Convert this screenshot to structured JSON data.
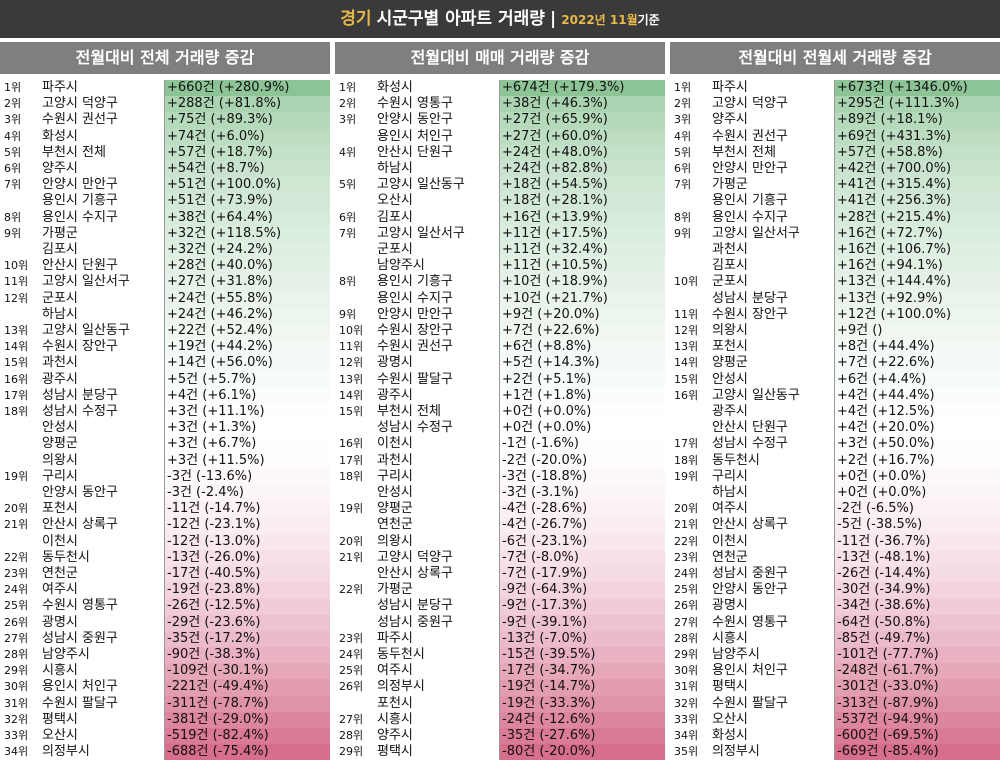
{
  "header": {
    "region": "경기",
    "title": "시군구별 아파트 거래량",
    "separator": "|",
    "date": "2022년 11월",
    "date_suffix": "기준"
  },
  "panels": [
    {
      "title": "전월대비 전체 거래량 증감",
      "rows": [
        {
          "rank": "1위",
          "name": "파주시",
          "value": "+660건 (+280.9%)"
        },
        {
          "rank": "2위",
          "name": "고양시 덕양구",
          "value": "+288건 (+81.8%)"
        },
        {
          "rank": "3위",
          "name": "수원시 권선구",
          "value": "+75건 (+89.3%)"
        },
        {
          "rank": "4위",
          "name": "화성시",
          "value": "+74건 (+6.0%)"
        },
        {
          "rank": "5위",
          "name": "부천시 전체",
          "value": "+57건 (+18.7%)"
        },
        {
          "rank": "6위",
          "name": "양주시",
          "value": "+54건 (+8.7%)"
        },
        {
          "rank": "7위",
          "name": "안양시 만안구",
          "value": "+51건 (+100.0%)"
        },
        {
          "rank": "",
          "name": "용인시 기흥구",
          "value": "+51건 (+73.9%)"
        },
        {
          "rank": "8위",
          "name": "용인시 수지구",
          "value": "+38건 (+64.4%)"
        },
        {
          "rank": "9위",
          "name": "가평군",
          "value": "+32건 (+118.5%)"
        },
        {
          "rank": "",
          "name": "김포시",
          "value": "+32건 (+24.2%)"
        },
        {
          "rank": "10위",
          "name": "안산시 단원구",
          "value": "+28건 (+40.0%)"
        },
        {
          "rank": "11위",
          "name": "고양시 일산서구",
          "value": "+27건 (+31.8%)"
        },
        {
          "rank": "12위",
          "name": "군포시",
          "value": "+24건 (+55.8%)"
        },
        {
          "rank": "",
          "name": "하남시",
          "value": "+24건 (+46.2%)"
        },
        {
          "rank": "13위",
          "name": "고양시 일산동구",
          "value": "+22건 (+52.4%)"
        },
        {
          "rank": "14위",
          "name": "수원시 장안구",
          "value": "+19건 (+44.2%)"
        },
        {
          "rank": "15위",
          "name": "과천시",
          "value": "+14건 (+56.0%)"
        },
        {
          "rank": "16위",
          "name": "광주시",
          "value": "+5건 (+5.7%)"
        },
        {
          "rank": "17위",
          "name": "성남시 분당구",
          "value": "+4건 (+6.1%)"
        },
        {
          "rank": "18위",
          "name": "성남시 수정구",
          "value": "+3건 (+11.1%)"
        },
        {
          "rank": "",
          "name": "안성시",
          "value": "+3건 (+1.3%)"
        },
        {
          "rank": "",
          "name": "양평군",
          "value": "+3건 (+6.7%)"
        },
        {
          "rank": "",
          "name": "의왕시",
          "value": "+3건 (+11.5%)"
        },
        {
          "rank": "19위",
          "name": "구리시",
          "value": "-3건 (-13.6%)"
        },
        {
          "rank": "",
          "name": "안양시 동안구",
          "value": "-3건 (-2.4%)"
        },
        {
          "rank": "20위",
          "name": "포천시",
          "value": "-11건 (-14.7%)"
        },
        {
          "rank": "21위",
          "name": "안산시 상록구",
          "value": "-12건 (-23.1%)"
        },
        {
          "rank": "",
          "name": "이천시",
          "value": "-12건 (-13.0%)"
        },
        {
          "rank": "22위",
          "name": "동두천시",
          "value": "-13건 (-26.0%)"
        },
        {
          "rank": "23위",
          "name": "연천군",
          "value": "-17건 (-40.5%)"
        },
        {
          "rank": "24위",
          "name": "여주시",
          "value": "-19건 (-23.8%)"
        },
        {
          "rank": "25위",
          "name": "수원시 영통구",
          "value": "-26건 (-12.5%)"
        },
        {
          "rank": "26위",
          "name": "광명시",
          "value": "-29건 (-23.6%)"
        },
        {
          "rank": "27위",
          "name": "성남시 중원구",
          "value": "-35건 (-17.2%)"
        },
        {
          "rank": "28위",
          "name": "남양주시",
          "value": "-90건 (-38.3%)"
        },
        {
          "rank": "29위",
          "name": "시흥시",
          "value": "-109건 (-30.1%)"
        },
        {
          "rank": "30위",
          "name": "용인시 처인구",
          "value": "-221건 (-49.4%)"
        },
        {
          "rank": "31위",
          "name": "수원시 팔달구",
          "value": "-311건 (-78.7%)"
        },
        {
          "rank": "32위",
          "name": "평택시",
          "value": "-381건 (-29.0%)"
        },
        {
          "rank": "33위",
          "name": "오산시",
          "value": "-519건 (-82.4%)"
        },
        {
          "rank": "34위",
          "name": "의정부시",
          "value": "-688건 (-75.4%)"
        }
      ]
    },
    {
      "title": "전월대비 매매 거래량 증감",
      "rows": [
        {
          "rank": "1위",
          "name": "화성시",
          "value": "+674건 (+179.3%)"
        },
        {
          "rank": "2위",
          "name": "수원시 영통구",
          "value": "+38건 (+46.3%)"
        },
        {
          "rank": "3위",
          "name": "안양시 동안구",
          "value": "+27건 (+65.9%)"
        },
        {
          "rank": "",
          "name": "용인시 처인구",
          "value": "+27건 (+60.0%)"
        },
        {
          "rank": "4위",
          "name": "안산시 단원구",
          "value": "+24건 (+48.0%)"
        },
        {
          "rank": "",
          "name": "하남시",
          "value": "+24건 (+82.8%)"
        },
        {
          "rank": "5위",
          "name": "고양시 일산동구",
          "value": "+18건 (+54.5%)"
        },
        {
          "rank": "",
          "name": "오산시",
          "value": "+18건 (+28.1%)"
        },
        {
          "rank": "6위",
          "name": "김포시",
          "value": "+16건 (+13.9%)"
        },
        {
          "rank": "7위",
          "name": "고양시 일산서구",
          "value": "+11건 (+17.5%)"
        },
        {
          "rank": "",
          "name": "군포시",
          "value": "+11건 (+32.4%)"
        },
        {
          "rank": "",
          "name": "남양주시",
          "value": "+11건 (+10.5%)"
        },
        {
          "rank": "8위",
          "name": "용인시 기흥구",
          "value": "+10건 (+18.9%)"
        },
        {
          "rank": "",
          "name": "용인시 수지구",
          "value": "+10건 (+21.7%)"
        },
        {
          "rank": "9위",
          "name": "안양시 만안구",
          "value": "+9건 (+20.0%)"
        },
        {
          "rank": "10위",
          "name": "수원시 장안구",
          "value": "+7건 (+22.6%)"
        },
        {
          "rank": "11위",
          "name": "수원시 권선구",
          "value": "+6건 (+8.8%)"
        },
        {
          "rank": "12위",
          "name": "광명시",
          "value": "+5건 (+14.3%)"
        },
        {
          "rank": "13위",
          "name": "수원시 팔달구",
          "value": "+2건 (+5.1%)"
        },
        {
          "rank": "14위",
          "name": "광주시",
          "value": "+1건 (+1.8%)"
        },
        {
          "rank": "15위",
          "name": "부천시 전체",
          "value": "+0건 (+0.0%)"
        },
        {
          "rank": "",
          "name": "성남시 수정구",
          "value": "+0건 (+0.0%)"
        },
        {
          "rank": "16위",
          "name": "이천시",
          "value": "-1건 (-1.6%)"
        },
        {
          "rank": "17위",
          "name": "과천시",
          "value": "-2건 (-20.0%)"
        },
        {
          "rank": "18위",
          "name": "구리시",
          "value": "-3건 (-18.8%)"
        },
        {
          "rank": "",
          "name": "안성시",
          "value": "-3건 (-3.1%)"
        },
        {
          "rank": "19위",
          "name": "양평군",
          "value": "-4건 (-28.6%)"
        },
        {
          "rank": "",
          "name": "연천군",
          "value": "-4건 (-26.7%)"
        },
        {
          "rank": "20위",
          "name": "의왕시",
          "value": "-6건 (-23.1%)"
        },
        {
          "rank": "21위",
          "name": "고양시 덕양구",
          "value": "-7건 (-8.0%)"
        },
        {
          "rank": "",
          "name": "안산시 상록구",
          "value": "-7건 (-17.9%)"
        },
        {
          "rank": "22위",
          "name": "가평군",
          "value": "-9건 (-64.3%)"
        },
        {
          "rank": "",
          "name": "성남시 분당구",
          "value": "-9건 (-17.3%)"
        },
        {
          "rank": "",
          "name": "성남시 중원구",
          "value": "-9건 (-39.1%)"
        },
        {
          "rank": "23위",
          "name": "파주시",
          "value": "-13건 (-7.0%)"
        },
        {
          "rank": "24위",
          "name": "동두천시",
          "value": "-15건 (-39.5%)"
        },
        {
          "rank": "25위",
          "name": "여주시",
          "value": "-17건 (-34.7%)"
        },
        {
          "rank": "26위",
          "name": "의정부시",
          "value": "-19건 (-14.7%)"
        },
        {
          "rank": "",
          "name": "포천시",
          "value": "-19건 (-33.3%)"
        },
        {
          "rank": "27위",
          "name": "시흥시",
          "value": "-24건 (-12.6%)"
        },
        {
          "rank": "28위",
          "name": "양주시",
          "value": "-35건 (-27.6%)"
        },
        {
          "rank": "29위",
          "name": "평택시",
          "value": "-80건 (-20.0%)"
        }
      ]
    },
    {
      "title": "전월대비 전월세 거래량 증감",
      "rows": [
        {
          "rank": "1위",
          "name": "파주시",
          "value": "+673건 (+1346.0%)"
        },
        {
          "rank": "2위",
          "name": "고양시 덕양구",
          "value": "+295건 (+111.3%)"
        },
        {
          "rank": "3위",
          "name": "양주시",
          "value": "+89건 (+18.1%)"
        },
        {
          "rank": "4위",
          "name": "수원시 권선구",
          "value": "+69건 (+431.3%)"
        },
        {
          "rank": "5위",
          "name": "부천시 전체",
          "value": "+57건 (+58.8%)"
        },
        {
          "rank": "6위",
          "name": "안양시 만안구",
          "value": "+42건 (+700.0%)"
        },
        {
          "rank": "7위",
          "name": "가평군",
          "value": "+41건 (+315.4%)"
        },
        {
          "rank": "",
          "name": "용인시 기흥구",
          "value": "+41건 (+256.3%)"
        },
        {
          "rank": "8위",
          "name": "용인시 수지구",
          "value": "+28건 (+215.4%)"
        },
        {
          "rank": "9위",
          "name": "고양시 일산서구",
          "value": "+16건 (+72.7%)"
        },
        {
          "rank": "",
          "name": "과천시",
          "value": "+16건 (+106.7%)"
        },
        {
          "rank": "",
          "name": "김포시",
          "value": "+16건 (+94.1%)"
        },
        {
          "rank": "10위",
          "name": "군포시",
          "value": "+13건 (+144.4%)"
        },
        {
          "rank": "",
          "name": "성남시 분당구",
          "value": "+13건 (+92.9%)"
        },
        {
          "rank": "11위",
          "name": "수원시 장안구",
          "value": "+12건 (+100.0%)"
        },
        {
          "rank": "12위",
          "name": "의왕시",
          "value": "+9건 ()"
        },
        {
          "rank": "13위",
          "name": "포천시",
          "value": "+8건 (+44.4%)"
        },
        {
          "rank": "14위",
          "name": "양평군",
          "value": "+7건 (+22.6%)"
        },
        {
          "rank": "15위",
          "name": "안성시",
          "value": "+6건 (+4.4%)"
        },
        {
          "rank": "16위",
          "name": "고양시 일산동구",
          "value": "+4건 (+44.4%)"
        },
        {
          "rank": "",
          "name": "광주시",
          "value": "+4건 (+12.5%)"
        },
        {
          "rank": "",
          "name": "안산시 단원구",
          "value": "+4건 (+20.0%)"
        },
        {
          "rank": "17위",
          "name": "성남시 수정구",
          "value": "+3건 (+50.0%)"
        },
        {
          "rank": "18위",
          "name": "동두천시",
          "value": "+2건 (+16.7%)"
        },
        {
          "rank": "19위",
          "name": "구리시",
          "value": "+0건 (+0.0%)"
        },
        {
          "rank": "",
          "name": "하남시",
          "value": "+0건 (+0.0%)"
        },
        {
          "rank": "20위",
          "name": "여주시",
          "value": "-2건 (-6.5%)"
        },
        {
          "rank": "21위",
          "name": "안산시 상록구",
          "value": "-5건 (-38.5%)"
        },
        {
          "rank": "22위",
          "name": "이천시",
          "value": "-11건 (-36.7%)"
        },
        {
          "rank": "23위",
          "name": "연천군",
          "value": "-13건 (-48.1%)"
        },
        {
          "rank": "24위",
          "name": "성남시 중원구",
          "value": "-26건 (-14.4%)"
        },
        {
          "rank": "25위",
          "name": "안양시 동안구",
          "value": "-30건 (-34.9%)"
        },
        {
          "rank": "26위",
          "name": "광명시",
          "value": "-34건 (-38.6%)"
        },
        {
          "rank": "27위",
          "name": "수원시 영통구",
          "value": "-64건 (-50.8%)"
        },
        {
          "rank": "28위",
          "name": "시흥시",
          "value": "-85건 (-49.7%)"
        },
        {
          "rank": "29위",
          "name": "남양주시",
          "value": "-101건 (-77.7%)"
        },
        {
          "rank": "30위",
          "name": "용인시 처인구",
          "value": "-248건 (-61.7%)"
        },
        {
          "rank": "31위",
          "name": "평택시",
          "value": "-301건 (-33.0%)"
        },
        {
          "rank": "32위",
          "name": "수원시 팔달구",
          "value": "-313건 (-87.9%)"
        },
        {
          "rank": "33위",
          "name": "오산시",
          "value": "-537건 (-94.9%)"
        },
        {
          "rank": "34위",
          "name": "화성시",
          "value": "-600건 (-69.5%)"
        },
        {
          "rank": "35위",
          "name": "의정부시",
          "value": "-669건 (-85.4%)"
        }
      ]
    }
  ]
}
